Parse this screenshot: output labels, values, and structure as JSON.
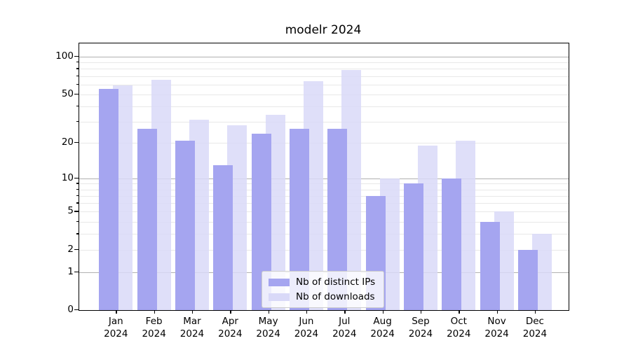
{
  "title": "modelr 2024",
  "legend": {
    "items": [
      {
        "label": "Nb of distinct IPs",
        "color": "#a5a5f0"
      },
      {
        "label": "Nb of downloads",
        "color": "#d9d9f8"
      }
    ]
  },
  "chart_data": {
    "type": "bar",
    "title": "modelr 2024",
    "categories": [
      "Jan",
      "Feb",
      "Mar",
      "Apr",
      "May",
      "Jun",
      "Jul",
      "Aug",
      "Sep",
      "Oct",
      "Nov",
      "Dec"
    ],
    "category_year": "2024",
    "series": [
      {
        "name": "Nb of distinct IPs",
        "color": "#a5a5f0",
        "opacity": 1,
        "values": [
          55,
          26,
          21,
          13,
          24,
          26,
          26,
          7,
          9,
          10,
          4,
          2
        ]
      },
      {
        "name": "Nb of downloads",
        "color": "#d9d9f8",
        "opacity": 0.85,
        "values": [
          59,
          65,
          31,
          28,
          34,
          64,
          78,
          10,
          19,
          21,
          5,
          3
        ]
      }
    ],
    "xlabel": "",
    "ylabel": "",
    "yscale": "log1p",
    "ylim": [
      0,
      128
    ],
    "yticks": [
      0,
      1,
      2,
      5,
      10,
      20,
      50,
      100
    ],
    "minor_yticks": [
      3,
      4,
      6,
      7,
      8,
      9,
      30,
      40,
      60,
      70,
      80,
      90
    ],
    "major_gridlines": [
      1,
      10,
      100
    ],
    "minor_gridlines": [
      2,
      3,
      4,
      5,
      6,
      7,
      8,
      9,
      20,
      30,
      40,
      50,
      60,
      70,
      80,
      90
    ],
    "grid": true,
    "legend_position": "lower center",
    "colors": {
      "major_grid": "#b0b0b0",
      "minor_grid": "#e8e8e8",
      "spine": "#000000",
      "background": "#ffffff"
    }
  }
}
